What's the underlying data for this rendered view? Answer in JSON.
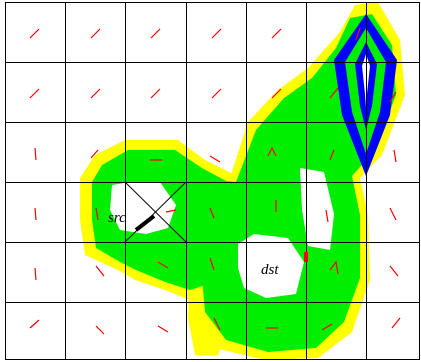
{
  "diagram": {
    "labels": {
      "source": "src",
      "destination": "dst"
    },
    "grid": {
      "rows": 6,
      "cols": 7,
      "line_color": "#000000"
    },
    "colors": {
      "outer_band": "#ffff00",
      "inner_band": "#00ee00",
      "outline": "#0000ff",
      "arrow": "#ff0000",
      "cut": "#000000",
      "background": "#ffffff"
    },
    "regions": [
      {
        "name": "flow-region",
        "style": "yellow-green-band"
      },
      {
        "name": "goal-diamond",
        "style": "blue-outline-band"
      }
    ],
    "vector_field_icon": "short-red-arrows"
  }
}
